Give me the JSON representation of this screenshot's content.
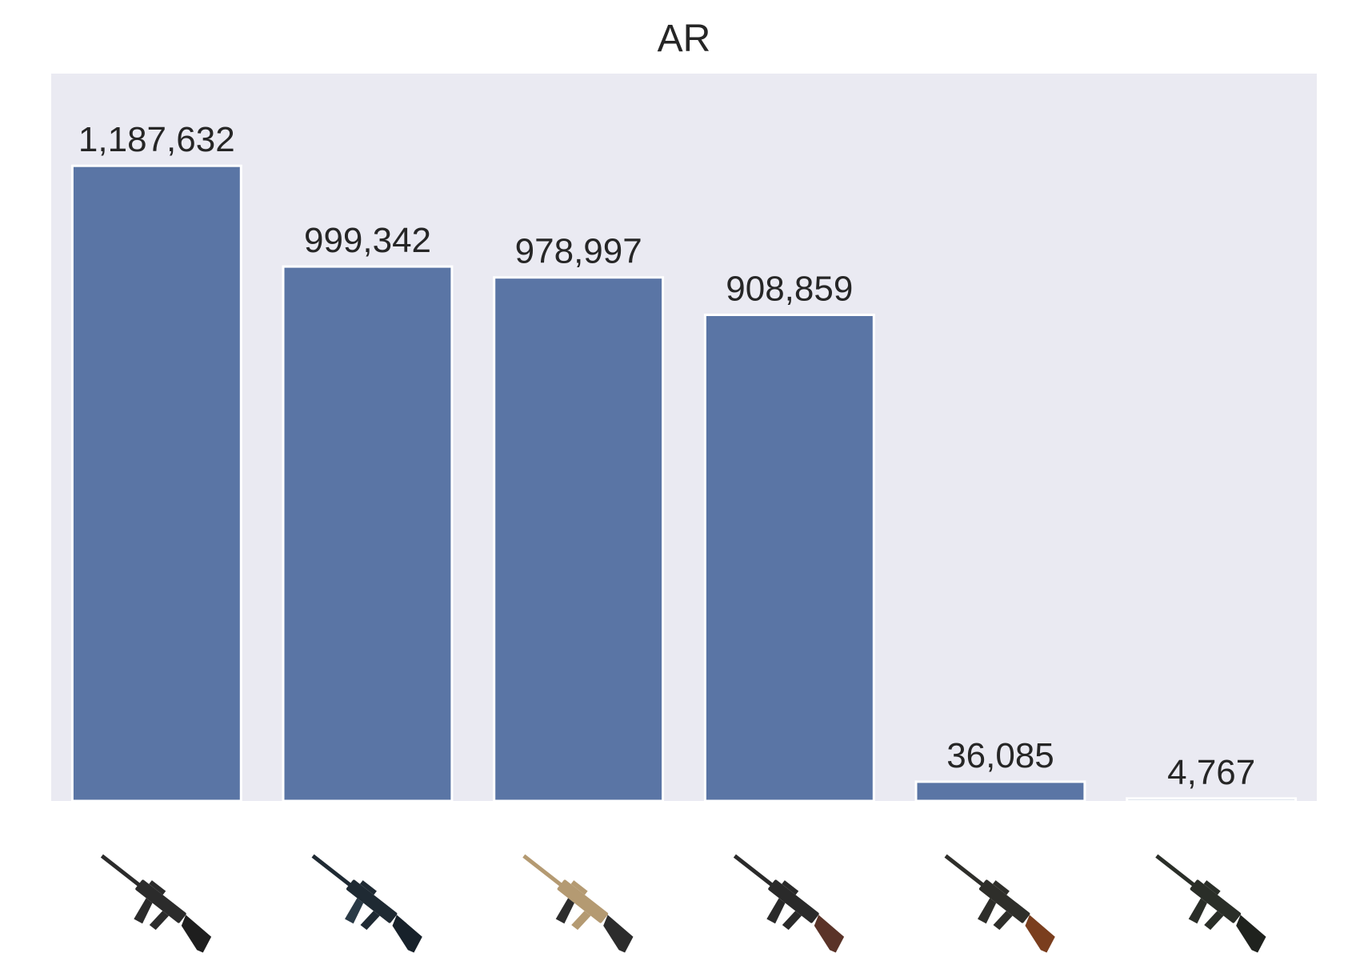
{
  "chart_data": {
    "type": "bar",
    "title": "AR",
    "xlabel": "",
    "ylabel": "",
    "categories": [
      "",
      "",
      "",
      "",
      "",
      ""
    ],
    "category_icons": [
      "rifle-icon-1",
      "rifle-icon-2",
      "rifle-icon-3",
      "rifle-icon-4",
      "rifle-icon-5",
      "rifle-icon-6"
    ],
    "values": [
      1187632,
      999342,
      978997,
      908859,
      36085,
      4767
    ],
    "value_labels": [
      "1,187,632",
      "999,342",
      "978,997",
      "908,859",
      "36,085",
      "4,767"
    ],
    "ylim": [
      0,
      1360000
    ],
    "grid": false,
    "legend": "none"
  },
  "colors": {
    "bar": "#5a75a5",
    "bar_edge": "#ffffff",
    "plot_background": "#eaeaf2",
    "text": "#262626"
  }
}
